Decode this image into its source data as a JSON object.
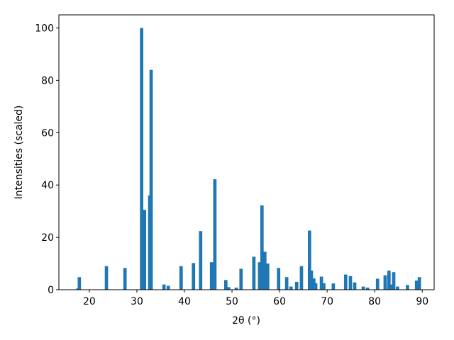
{
  "chart_data": {
    "type": "bar",
    "color": "#1f77b4",
    "bar_width": 0.7,
    "xlabel": "2θ (°)",
    "ylabel": "Intensities (scaled)",
    "x": [
      17.6,
      17.9,
      23.6,
      27.5,
      31.0,
      31.6,
      32.7,
      33.0,
      35.7,
      36.6,
      39.3,
      41.9,
      43.4,
      45.7,
      46.4,
      48.7,
      49.3,
      50.9,
      51.9,
      54.6,
      55.8,
      56.3,
      56.9,
      57.5,
      59.8,
      61.5,
      62.4,
      63.6,
      64.6,
      66.3,
      66.7,
      67.2,
      67.6,
      68.8,
      69.3,
      71.3,
      73.9,
      74.9,
      75.8,
      77.6,
      78.5,
      80.6,
      82.2,
      83.0,
      83.6,
      84.0,
      84.8,
      86.9,
      88.8,
      89.4
    ],
    "values": [
      0.5,
      4.8,
      9,
      8.3,
      100,
      30.5,
      36,
      84,
      2,
      1.5,
      9,
      10.2,
      22.4,
      10.5,
      42.2,
      3.7,
      1,
      0.8,
      8,
      12.6,
      10.5,
      32.2,
      14.5,
      10,
      8.3,
      4.8,
      1.2,
      3,
      9,
      22.6,
      7.3,
      4.3,
      2.5,
      5,
      2.5,
      2.4,
      5.8,
      5.2,
      2.8,
      1.2,
      0.8,
      4.2,
      5.5,
      7.3,
      2,
      6.7,
      1.2,
      1.8,
      3.5,
      4.8
    ],
    "xlim": [
      13.6,
      92.5
    ],
    "xticks": [
      20,
      30,
      40,
      50,
      60,
      70,
      80,
      90
    ],
    "ylim": [
      0,
      105
    ],
    "yticks": [
      0,
      20,
      40,
      60,
      80,
      100
    ],
    "grid": false
  }
}
